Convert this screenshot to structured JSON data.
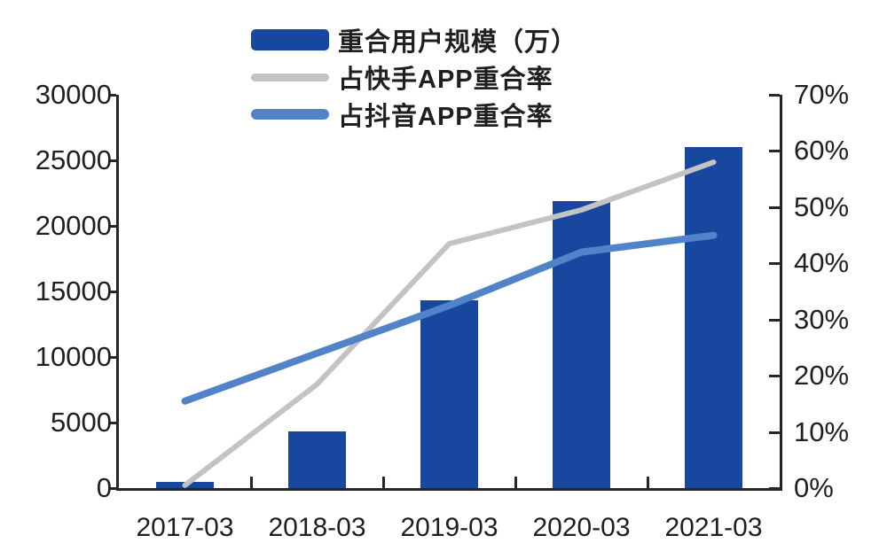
{
  "chart_data": {
    "type": "bar",
    "subtype": "bar-line-combo",
    "categories": [
      "2017-03",
      "2018-03",
      "2019-03",
      "2020-03",
      "2021-03"
    ],
    "series": [
      {
        "name": "重合用户规模（万）",
        "type": "bar",
        "axis": "left",
        "color": "#17479E",
        "values": [
          500,
          4300,
          14300,
          21900,
          26000
        ]
      },
      {
        "name": "占快手APP重合率",
        "type": "line",
        "axis": "right",
        "color": "#C3C3C3",
        "values": [
          0.5,
          18.5,
          43.5,
          49.5,
          58
        ]
      },
      {
        "name": "占抖音APP重合率",
        "type": "line",
        "axis": "right",
        "color": "#5083C7",
        "values": [
          15.5,
          24,
          32.5,
          42,
          45
        ]
      }
    ],
    "left_axis": {
      "min": 0,
      "max": 30000,
      "step": 5000,
      "ticks": [
        "30000",
        "25000",
        "20000",
        "15000",
        "10000",
        "5000",
        "0"
      ]
    },
    "right_axis": {
      "min": 0,
      "max": 70,
      "step": 10,
      "ticks": [
        "70%",
        "60%",
        "50%",
        "40%",
        "30%",
        "20%",
        "10%",
        "0%"
      ]
    },
    "title": "",
    "xlabel": "",
    "ylabel": "",
    "legend_position": "top-center",
    "grid": false,
    "axis_color": "#262626",
    "background_color": "#FFFFFF"
  }
}
